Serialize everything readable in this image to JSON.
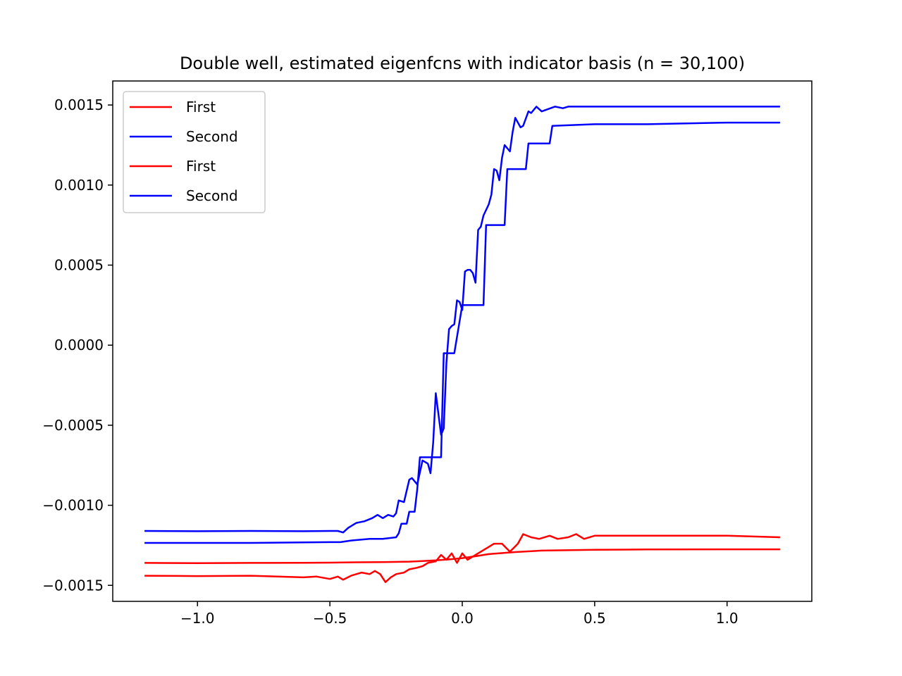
{
  "chart_data": {
    "type": "line",
    "title": "Double well, estimated eigenfcns with indicator basis (n = 30,100)",
    "xlabel": "",
    "ylabel": "",
    "xlim": [
      -1.32,
      1.32
    ],
    "ylim": [
      -0.0016,
      0.00165
    ],
    "x_ticks": [
      -1.0,
      -0.5,
      0.0,
      0.5,
      1.0
    ],
    "x_tick_labels": [
      "−1.0",
      "−0.5",
      "0.0",
      "0.5",
      "1.0"
    ],
    "y_ticks": [
      -0.0015,
      -0.001,
      -0.0005,
      0.0,
      0.0005,
      0.001,
      0.0015
    ],
    "y_tick_labels": [
      "−0.0015",
      "−0.0010",
      "−0.0005",
      "0.0000",
      "0.0005",
      "0.0010",
      "0.0015"
    ],
    "grid": false,
    "legend_position": "upper-left",
    "series": [
      {
        "name": "First",
        "color": "#ff0000",
        "x": [
          -1.2,
          -1.0,
          -0.8,
          -0.6,
          -0.5,
          -0.4,
          -0.3,
          -0.2,
          -0.15,
          -0.1,
          -0.05,
          0.0,
          0.05,
          0.1,
          0.2,
          0.3,
          0.5,
          0.7,
          1.0,
          1.2
        ],
        "y": [
          -0.00136,
          -0.001361,
          -0.00136,
          -0.001359,
          -0.001358,
          -0.001356,
          -0.001355,
          -0.001352,
          -0.001348,
          -0.001344,
          -0.001338,
          -0.00133,
          -0.001318,
          -0.001305,
          -0.001292,
          -0.001283,
          -0.001278,
          -0.001276,
          -0.001275,
          -0.001275
        ]
      },
      {
        "name": "Second",
        "color": "#0000ff",
        "x": [
          -1.2,
          -0.8,
          -0.5,
          -0.46,
          -0.42,
          -0.35,
          -0.3,
          -0.25,
          -0.24,
          -0.23,
          -0.21,
          -0.2,
          -0.18,
          -0.17,
          -0.16,
          -0.1,
          -0.08,
          -0.07,
          -0.04,
          -0.03,
          0.0,
          0.05,
          0.08,
          0.09,
          0.1,
          0.11,
          0.16,
          0.17,
          0.24,
          0.25,
          0.33,
          0.34,
          0.5,
          0.7,
          1.0,
          1.2
        ],
        "y": [
          -0.001235,
          -0.001235,
          -0.00123,
          -0.00123,
          -0.00122,
          -0.00121,
          -0.00121,
          -0.0012,
          -0.001175,
          -0.001115,
          -0.001115,
          -0.00104,
          -0.00104,
          -0.0009,
          -0.0007,
          -0.0007,
          -0.0007,
          -5e-05,
          -5e-05,
          -5e-05,
          0.00025,
          0.00025,
          0.00025,
          0.00075,
          0.00075,
          0.00075,
          0.00075,
          0.0011,
          0.0011,
          0.00126,
          0.00126,
          0.00137,
          0.00138,
          0.00138,
          0.00139,
          0.00139
        ]
      },
      {
        "name": "First",
        "color": "#ff0000",
        "x": [
          -1.2,
          -1.0,
          -0.8,
          -0.6,
          -0.55,
          -0.5,
          -0.47,
          -0.45,
          -0.42,
          -0.38,
          -0.35,
          -0.33,
          -0.31,
          -0.29,
          -0.27,
          -0.25,
          -0.22,
          -0.2,
          -0.17,
          -0.15,
          -0.13,
          -0.1,
          -0.08,
          -0.06,
          -0.04,
          -0.02,
          0.0,
          0.02,
          0.05,
          0.08,
          0.1,
          0.12,
          0.15,
          0.18,
          0.21,
          0.23,
          0.26,
          0.29,
          0.33,
          0.36,
          0.4,
          0.43,
          0.46,
          0.5,
          0.6,
          0.8,
          1.0,
          1.2
        ],
        "y": [
          -0.00144,
          -0.001442,
          -0.00144,
          -0.00145,
          -0.001445,
          -0.00146,
          -0.001445,
          -0.001465,
          -0.00144,
          -0.00142,
          -0.00143,
          -0.00141,
          -0.00143,
          -0.00148,
          -0.00145,
          -0.00143,
          -0.00142,
          -0.0014,
          -0.00139,
          -0.00138,
          -0.00136,
          -0.00135,
          -0.00131,
          -0.00134,
          -0.0013,
          -0.00136,
          -0.0013,
          -0.00134,
          -0.00131,
          -0.00128,
          -0.00126,
          -0.00124,
          -0.00124,
          -0.00129,
          -0.00124,
          -0.00118,
          -0.0012,
          -0.00121,
          -0.00119,
          -0.00121,
          -0.0012,
          -0.00118,
          -0.00121,
          -0.00119,
          -0.00119,
          -0.00119,
          -0.00119,
          -0.0012
        ]
      },
      {
        "name": "Second",
        "color": "#0000ff",
        "x": [
          -1.2,
          -1.0,
          -0.8,
          -0.6,
          -0.5,
          -0.47,
          -0.45,
          -0.43,
          -0.4,
          -0.37,
          -0.34,
          -0.32,
          -0.3,
          -0.28,
          -0.26,
          -0.25,
          -0.24,
          -0.22,
          -0.2,
          -0.19,
          -0.17,
          -0.15,
          -0.13,
          -0.12,
          -0.11,
          -0.1,
          -0.08,
          -0.07,
          -0.06,
          -0.05,
          -0.04,
          -0.03,
          -0.02,
          -0.01,
          0.0,
          0.01,
          0.02,
          0.03,
          0.04,
          0.05,
          0.06,
          0.07,
          0.08,
          0.1,
          0.11,
          0.12,
          0.13,
          0.14,
          0.15,
          0.16,
          0.18,
          0.19,
          0.2,
          0.22,
          0.23,
          0.25,
          0.26,
          0.28,
          0.3,
          0.35,
          0.38,
          0.4,
          0.42,
          0.45,
          0.5,
          0.6,
          0.8,
          1.0,
          1.2
        ],
        "y": [
          -0.00116,
          -0.001162,
          -0.00116,
          -0.001162,
          -0.00116,
          -0.00116,
          -0.00117,
          -0.00114,
          -0.00111,
          -0.0011,
          -0.00108,
          -0.00106,
          -0.00108,
          -0.00106,
          -0.00107,
          -0.00105,
          -0.00097,
          -0.00098,
          -0.00084,
          -0.00083,
          -0.00087,
          -0.00072,
          -0.00074,
          -0.0008,
          -0.00061,
          -0.0003,
          -0.00056,
          -0.00052,
          -0.00011,
          0.0001,
          0.00012,
          0.00013,
          0.00028,
          0.00027,
          0.00022,
          0.00046,
          0.00047,
          0.00047,
          0.00045,
          0.00039,
          0.00072,
          0.00074,
          0.00081,
          0.00088,
          0.00094,
          0.0011,
          0.00109,
          0.00103,
          0.00117,
          0.00125,
          0.00121,
          0.00133,
          0.00142,
          0.00136,
          0.00137,
          0.00146,
          0.00145,
          0.00149,
          0.00146,
          0.00149,
          0.00148,
          0.00149,
          0.00149,
          0.00149,
          0.00149,
          0.00149,
          0.00149,
          0.00149,
          0.00149
        ]
      }
    ]
  }
}
